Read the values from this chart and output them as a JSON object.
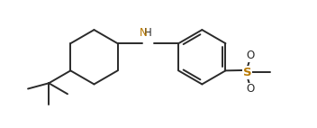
{
  "background_color": "#ffffff",
  "line_color": "#2a2a2a",
  "line_width": 1.4,
  "S_color": "#b87800",
  "font_size_nh": 8.5,
  "font_size_atom": 8.5,
  "fig_width": 3.52,
  "fig_height": 1.42,
  "dpi": 100,
  "xlim": [
    0.0,
    8.8
  ],
  "ylim": [
    -1.55,
    2.05
  ]
}
